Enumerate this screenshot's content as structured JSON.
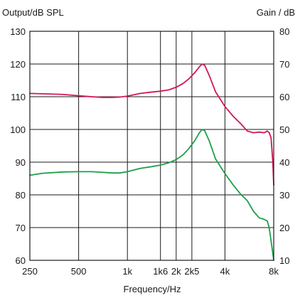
{
  "chart_data": {
    "type": "line",
    "x_scale": "log",
    "grid": true,
    "xlabel": "Frequency/Hz",
    "ylabel_left": "Output/dB SPL",
    "ylabel_right": "Gain / dB",
    "xlim": [
      250,
      8000
    ],
    "ylim_left": [
      60,
      130
    ],
    "ylim_right": [
      10,
      80
    ],
    "x_tick_values": [
      250,
      500,
      1000,
      1600,
      2000,
      2500,
      4000,
      8000
    ],
    "x_tick_labels": [
      "250",
      "500",
      "1k",
      "1k6",
      "2k",
      "2k5",
      "4k",
      "8k"
    ],
    "y_left_ticks": [
      60,
      70,
      80,
      90,
      100,
      110,
      120,
      130
    ],
    "y_left_tick_labels": [
      "60",
      "70",
      "80",
      "90",
      "100",
      "110",
      "120",
      "130"
    ],
    "y_right_ticks": [
      10,
      20,
      30,
      40,
      50,
      60,
      70,
      80
    ],
    "y_right_tick_labels": [
      "10",
      "20",
      "30",
      "40",
      "50",
      "60",
      "70",
      "80"
    ],
    "series": [
      {
        "axis": "left",
        "color": "#d4145a",
        "x": [
          250,
          300,
          400,
          500,
          600,
          700,
          800,
          900,
          1000,
          1200,
          1400,
          1600,
          1800,
          2000,
          2200,
          2400,
          2600,
          2800,
          2900,
          3000,
          3200,
          3500,
          4000,
          4500,
          5000,
          5500,
          6000,
          6500,
          7000,
          7300,
          7500,
          7700,
          7900,
          8000
        ],
        "values": [
          111,
          110.9,
          110.7,
          110.3,
          110,
          109.8,
          109.8,
          109.9,
          110.2,
          111,
          111.4,
          111.7,
          112.1,
          112.9,
          114,
          115.5,
          117.3,
          119.3,
          120,
          119.6,
          116.5,
          111.5,
          107,
          104,
          101.8,
          99.5,
          99,
          99.2,
          99,
          99.5,
          99,
          97.5,
          90,
          83
        ]
      },
      {
        "axis": "left",
        "color": "#1f9e4a",
        "x": [
          250,
          300,
          400,
          500,
          600,
          700,
          800,
          900,
          1000,
          1200,
          1400,
          1600,
          1800,
          2000,
          2200,
          2400,
          2600,
          2800,
          2900,
          3000,
          3200,
          3500,
          4000,
          4500,
          5000,
          5500,
          6000,
          6500,
          7000,
          7300,
          7500,
          7700,
          7900,
          8000
        ],
        "values": [
          86,
          86.6,
          87,
          87.1,
          87.1,
          86.9,
          86.7,
          86.7,
          87.1,
          88.1,
          88.6,
          89.1,
          89.8,
          90.8,
          92.2,
          94.2,
          96.5,
          99.2,
          100,
          99.6,
          96.5,
          91,
          86.5,
          83,
          80.2,
          78.2,
          75,
          73,
          72.5,
          72,
          70,
          66,
          62,
          60
        ]
      }
    ]
  }
}
